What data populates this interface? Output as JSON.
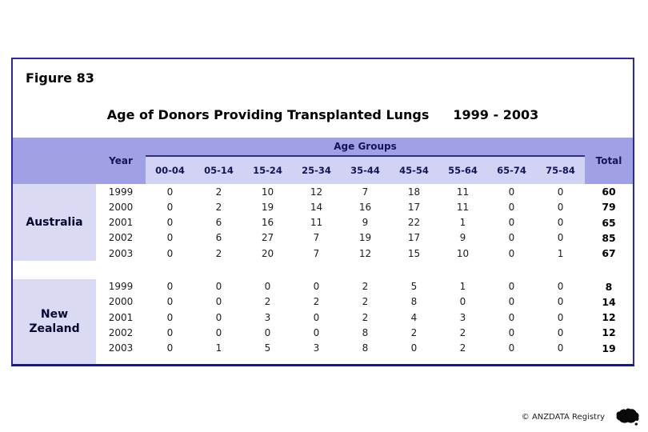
{
  "page": {
    "figure_label": "Figure 83",
    "title": "Age of Donors Providing Transplanted Lungs",
    "title_period": "1999 - 2003",
    "footer_copyright": "© ANZDATA Registry",
    "footer_icon": "australia-map-icon"
  },
  "colors": {
    "border_navy": "#2828a8",
    "border_navy_dark": "#16168c",
    "header_purple": "#a0a0e6",
    "subheader_lavender": "#d2d2f5",
    "label_lavender": "#dadaf5",
    "header_text": "#14145a"
  },
  "chart_data": {
    "type": "table",
    "title": "Age of Donors Providing Transplanted Lungs 1999 - 2003",
    "column_group_label": "Age Groups",
    "year_header": "Year",
    "total_header": "Total",
    "age_group_columns": [
      "00-04",
      "05-14",
      "15-24",
      "25-34",
      "35-44",
      "45-54",
      "55-64",
      "65-74",
      "75-84"
    ],
    "groups": [
      {
        "label": "Australia",
        "rows": [
          {
            "year": "1999",
            "values": [
              0,
              2,
              10,
              12,
              7,
              18,
              11,
              0,
              0
            ],
            "total": 60
          },
          {
            "year": "2000",
            "values": [
              0,
              2,
              19,
              14,
              16,
              17,
              11,
              0,
              0
            ],
            "total": 79
          },
          {
            "year": "2001",
            "values": [
              0,
              6,
              16,
              11,
              9,
              22,
              1,
              0,
              0
            ],
            "total": 65
          },
          {
            "year": "2002",
            "values": [
              0,
              6,
              27,
              7,
              19,
              17,
              9,
              0,
              0
            ],
            "total": 85
          },
          {
            "year": "2003",
            "values": [
              0,
              2,
              20,
              7,
              12,
              15,
              10,
              0,
              1
            ],
            "total": 67
          }
        ]
      },
      {
        "label": "New Zealand",
        "rows": [
          {
            "year": "1999",
            "values": [
              0,
              0,
              0,
              0,
              2,
              5,
              1,
              0,
              0
            ],
            "total": 8
          },
          {
            "year": "2000",
            "values": [
              0,
              0,
              2,
              2,
              2,
              8,
              0,
              0,
              0
            ],
            "total": 14
          },
          {
            "year": "2001",
            "values": [
              0,
              0,
              3,
              0,
              2,
              4,
              3,
              0,
              0
            ],
            "total": 12
          },
          {
            "year": "2002",
            "values": [
              0,
              0,
              0,
              0,
              8,
              2,
              2,
              0,
              0
            ],
            "total": 12
          },
          {
            "year": "2003",
            "values": [
              0,
              1,
              5,
              3,
              8,
              0,
              2,
              0,
              0
            ],
            "total": 19
          }
        ]
      }
    ]
  }
}
